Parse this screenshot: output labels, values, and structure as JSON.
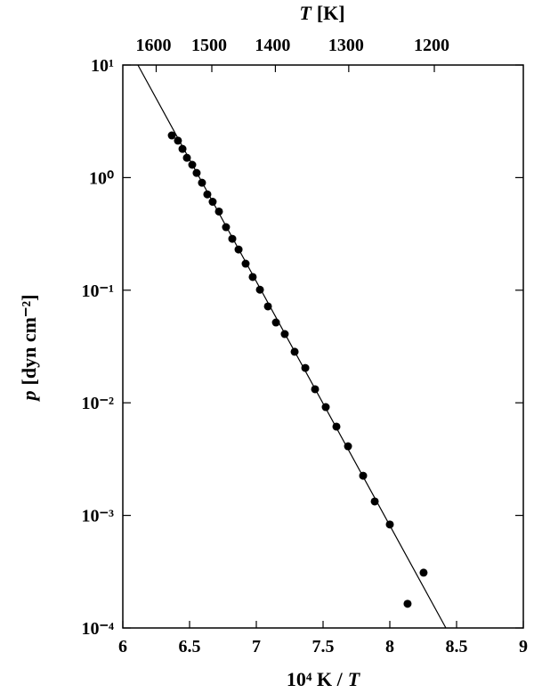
{
  "chart_data": {
    "type": "scatter",
    "color": "#000000",
    "log_y": true,
    "xlim": [
      6,
      9
    ],
    "xticks": [
      6,
      6.5,
      7,
      7.5,
      8,
      8.5,
      9
    ],
    "ylim": [
      0.0001,
      10
    ],
    "yticks": [
      {
        "value": 10,
        "label": "10¹"
      },
      {
        "value": 1,
        "label": "10⁰"
      },
      {
        "value": 0.1,
        "label": "10⁻¹"
      },
      {
        "value": 0.01,
        "label": "10⁻²"
      },
      {
        "value": 0.001,
        "label": "10⁻³"
      },
      {
        "value": 0.0001,
        "label": "10⁻⁴"
      }
    ],
    "x2ticks": [
      1600,
      1500,
      1400,
      1300,
      1200
    ],
    "x2label": [
      "T",
      "[K]"
    ],
    "xlabel": [
      "10⁴ K /",
      "T"
    ],
    "ylabel": [
      "p",
      "[dyn cm⁻²]"
    ],
    "x": [
      6.367,
      6.413,
      6.447,
      6.48,
      6.52,
      6.553,
      6.593,
      6.633,
      6.673,
      6.72,
      6.773,
      6.82,
      6.867,
      6.92,
      6.973,
      7.027,
      7.087,
      7.147,
      7.213,
      7.287,
      7.367,
      7.44,
      7.52,
      7.6,
      7.687,
      7.8,
      7.887,
      8.0,
      8.253,
      8.133
    ],
    "values": [
      2.37,
      2.13,
      1.8,
      1.5,
      1.3,
      1.1,
      0.9,
      0.71,
      0.61,
      0.5,
      0.363,
      0.286,
      0.23,
      0.172,
      0.131,
      0.101,
      0.0718,
      0.0517,
      0.0408,
      0.0284,
      0.0204,
      0.0132,
      0.00916,
      0.00614,
      0.00411,
      0.00225,
      0.00133,
      0.00083,
      0.00031,
      0.000164
    ],
    "fit_line": {
      "x": [
        6.113,
        8.42
      ],
      "y": [
        10,
        0.0001
      ]
    }
  }
}
